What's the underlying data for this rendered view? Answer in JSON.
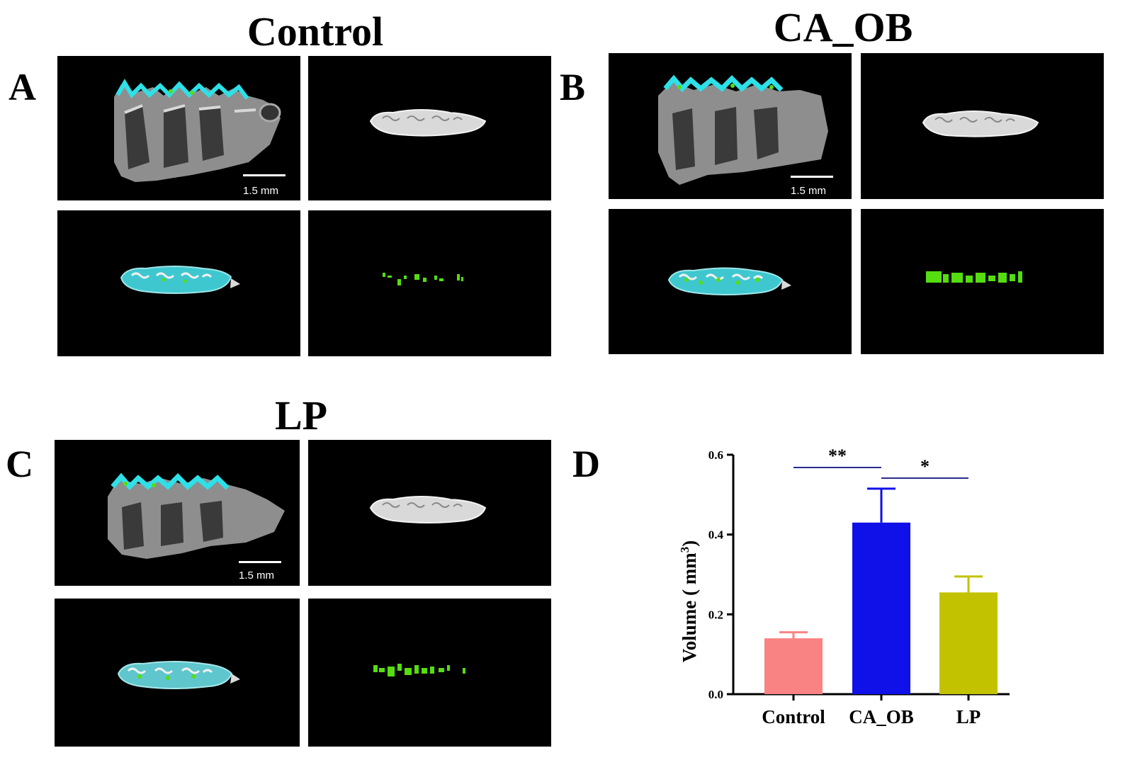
{
  "panels": {
    "A": {
      "letter": "A",
      "title": "Control",
      "scale_label": "1.5 mm"
    },
    "B": {
      "letter": "B",
      "title": "CA_OB",
      "scale_label": "1.5 mm"
    },
    "C": {
      "letter": "C",
      "title": "LP",
      "scale_label": "1.5 mm"
    },
    "D": {
      "letter": "D"
    }
  },
  "colors": {
    "control": "#f98383",
    "ca_ob": "#1010e8",
    "lp": "#c2c200",
    "bracket": "#2b2b8c",
    "highlight_cyan": "#2ee0e8",
    "highlight_green": "#55dd10"
  },
  "chart_data": {
    "type": "bar",
    "categories": [
      "Control",
      "CA_OB",
      "LP"
    ],
    "values": [
      0.14,
      0.43,
      0.255
    ],
    "errors": [
      0.015,
      0.085,
      0.04
    ],
    "ylabel": "Volume ( mm3)",
    "ylabel_main": "Volume ( mm",
    "ylabel_sup": "3",
    "ylabel_end": ")",
    "ylim": [
      0,
      0.6
    ],
    "yticks": [
      "0.0",
      "0.2",
      "0.4",
      "0.6"
    ],
    "significance": [
      {
        "from": "Control",
        "to": "CA_OB",
        "label": "**"
      },
      {
        "from": "CA_OB",
        "to": "LP",
        "label": "*"
      }
    ],
    "grid": false,
    "legend": "none"
  }
}
